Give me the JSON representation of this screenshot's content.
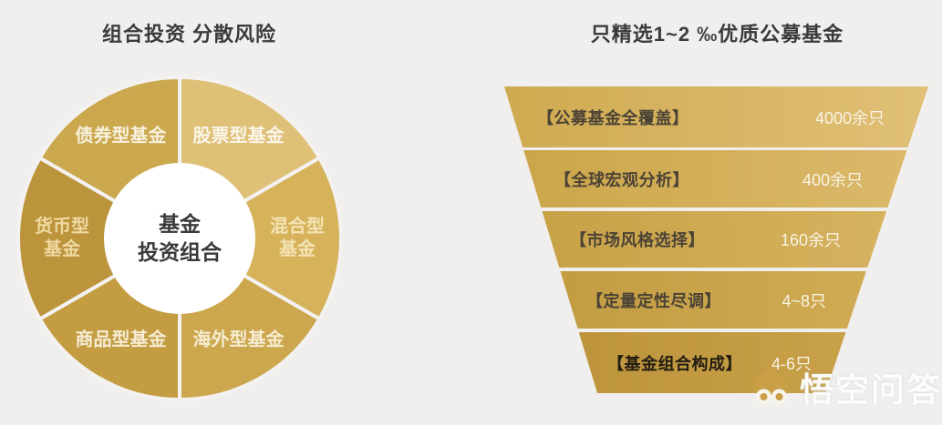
{
  "background": "#f0efee",
  "left_section": {
    "title": "组合投资 分散风险",
    "center_label_lines": [
      "基金",
      "投资组合"
    ],
    "separator_color": "#f3f2f0",
    "segments": [
      {
        "name": "股票型基金",
        "lines": [
          "股票型基金"
        ],
        "start_angle": 0,
        "end_angle": 60,
        "color": "#dfc077",
        "label_color": "#faf5e8"
      },
      {
        "name": "混合型基金",
        "lines": [
          "混合型",
          "基金"
        ],
        "start_angle": 60,
        "end_angle": 120,
        "color": "#d6b25b",
        "label_color": "#f3e3b4"
      },
      {
        "name": "海外型基金",
        "lines": [
          "海外型基金"
        ],
        "start_angle": 120,
        "end_angle": 180,
        "color": "#cda74d",
        "label_color": "#f5ecd3"
      },
      {
        "name": "商品型基金",
        "lines": [
          "商品型基金"
        ],
        "start_angle": 180,
        "end_angle": 240,
        "color": "#c49c42",
        "label_color": "#f5ecd3"
      },
      {
        "name": "货币型基金",
        "lines": [
          "货币型",
          "基金"
        ],
        "start_angle": 240,
        "end_angle": 300,
        "color": "#bc943b",
        "label_color": "#eed9a2"
      },
      {
        "name": "债券型基金",
        "lines": [
          "债券型基金"
        ],
        "start_angle": 300,
        "end_angle": 360,
        "color": "#cba84e",
        "label_color": "#f7f0dd"
      }
    ]
  },
  "right_section": {
    "title": "只精选1~2 ‰优质公募基金",
    "funnel": [
      {
        "label": "【公募基金全覆盖】",
        "count": "4000余只"
      },
      {
        "label": "【全球宏观分析】",
        "count": "400余只"
      },
      {
        "label": "【市场风格选择】",
        "count": "160余只"
      },
      {
        "label": "【定量定性尽调】",
        "count": "4~8只"
      },
      {
        "label": "【基金组合构成】",
        "count": "4-6只"
      }
    ]
  },
  "watermark": {
    "text": "悟空问答",
    "logo": "wukong-monkey",
    "logo_color": "#c9a047"
  },
  "chart_data": [
    {
      "type": "pie",
      "variant": "donut",
      "title": "组合投资 分散风险",
      "center_label": "基金投资组合",
      "categories": [
        "股票型基金",
        "混合型基金",
        "海外型基金",
        "商品型基金",
        "货币型基金",
        "债券型基金"
      ],
      "values": [
        16.67,
        16.67,
        16.67,
        16.67,
        16.67,
        16.67
      ],
      "note": "six equal 60-degree segments in gold shades, white center hole, labels on segments",
      "colors": [
        "#dfc077",
        "#d6b25b",
        "#cda74d",
        "#c49c42",
        "#bc943b",
        "#cba84e"
      ],
      "legend_position": "none"
    },
    {
      "type": "funnel",
      "title": "只精选1~2 ‰优质公募基金",
      "stages": [
        {
          "label": "【公募基金全覆盖】",
          "value_label": "4000余只",
          "approx_value": 4000
        },
        {
          "label": "【全球宏观分析】",
          "value_label": "400余只",
          "approx_value": 400
        },
        {
          "label": "【市场风格选择】",
          "value_label": "160余只",
          "approx_value": 160
        },
        {
          "label": "【定量定性尽调】",
          "value_label": "4~8只",
          "approx_value": 8
        },
        {
          "label": "【基金组合构成】",
          "value_label": "4-6只",
          "approx_value": 6
        }
      ],
      "orientation": "top-wide",
      "accent_color": "#cba44d"
    }
  ]
}
